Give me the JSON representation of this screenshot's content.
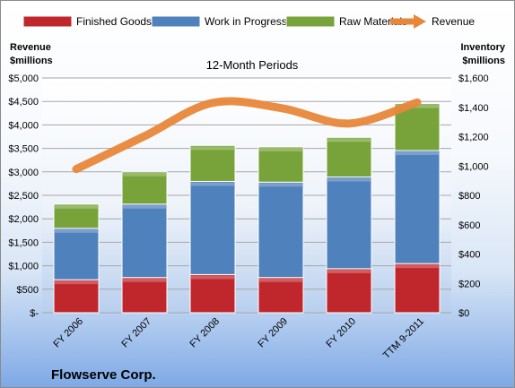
{
  "company": "Flowserve Corp.",
  "chart_data": {
    "type": "bar",
    "stacked": true,
    "title": "12-Month Periods",
    "categories": [
      "FY 2006",
      "FY 2007",
      "FY 2008",
      "FY 2009",
      "FY 2010",
      "TTM 9-2011"
    ],
    "left_axis": {
      "label_line1": "Revenue",
      "label_line2": "$millions",
      "ylim": [
        0,
        5000
      ],
      "ticks": [
        0,
        500,
        1000,
        1500,
        2000,
        2500,
        3000,
        3500,
        4000,
        4500,
        5000
      ],
      "tick_labels": [
        "$-",
        "$500",
        "$1,000",
        "$1,500",
        "$2,000",
        "$2,500",
        "$3,000",
        "$3,500",
        "$4,000",
        "$4,500",
        "$5,000"
      ]
    },
    "right_axis": {
      "label_line1": "Inventory",
      "label_line2": "$millions",
      "ylim": [
        0,
        1600
      ],
      "ticks": [
        0,
        200,
        400,
        600,
        800,
        1000,
        1200,
        1400,
        1600
      ],
      "tick_labels": [
        "$0",
        "$200",
        "$400",
        "$600",
        "$800",
        "$1,000",
        "$1,200",
        "$1,400",
        "$1,600"
      ]
    },
    "series": [
      {
        "name": "Finished Goods",
        "axis": "right",
        "kind": "bar",
        "color": "#c0272d",
        "values": [
          225,
          240,
          260,
          240,
          300,
          335
        ]
      },
      {
        "name": "Work in Progress",
        "axis": "right",
        "kind": "bar",
        "color": "#4f81bd",
        "values": [
          350,
          500,
          635,
          650,
          625,
          770
        ]
      },
      {
        "name": "Raw Materials",
        "axis": "right",
        "kind": "bar",
        "color": "#77a33a",
        "values": [
          165,
          220,
          245,
          240,
          270,
          320
        ]
      },
      {
        "name": "Revenue",
        "axis": "left",
        "kind": "line",
        "color": "#e8873a",
        "values": [
          3060,
          3760,
          4470,
          4360,
          4030,
          4480
        ]
      }
    ],
    "grid": true,
    "legend_position": "top"
  }
}
